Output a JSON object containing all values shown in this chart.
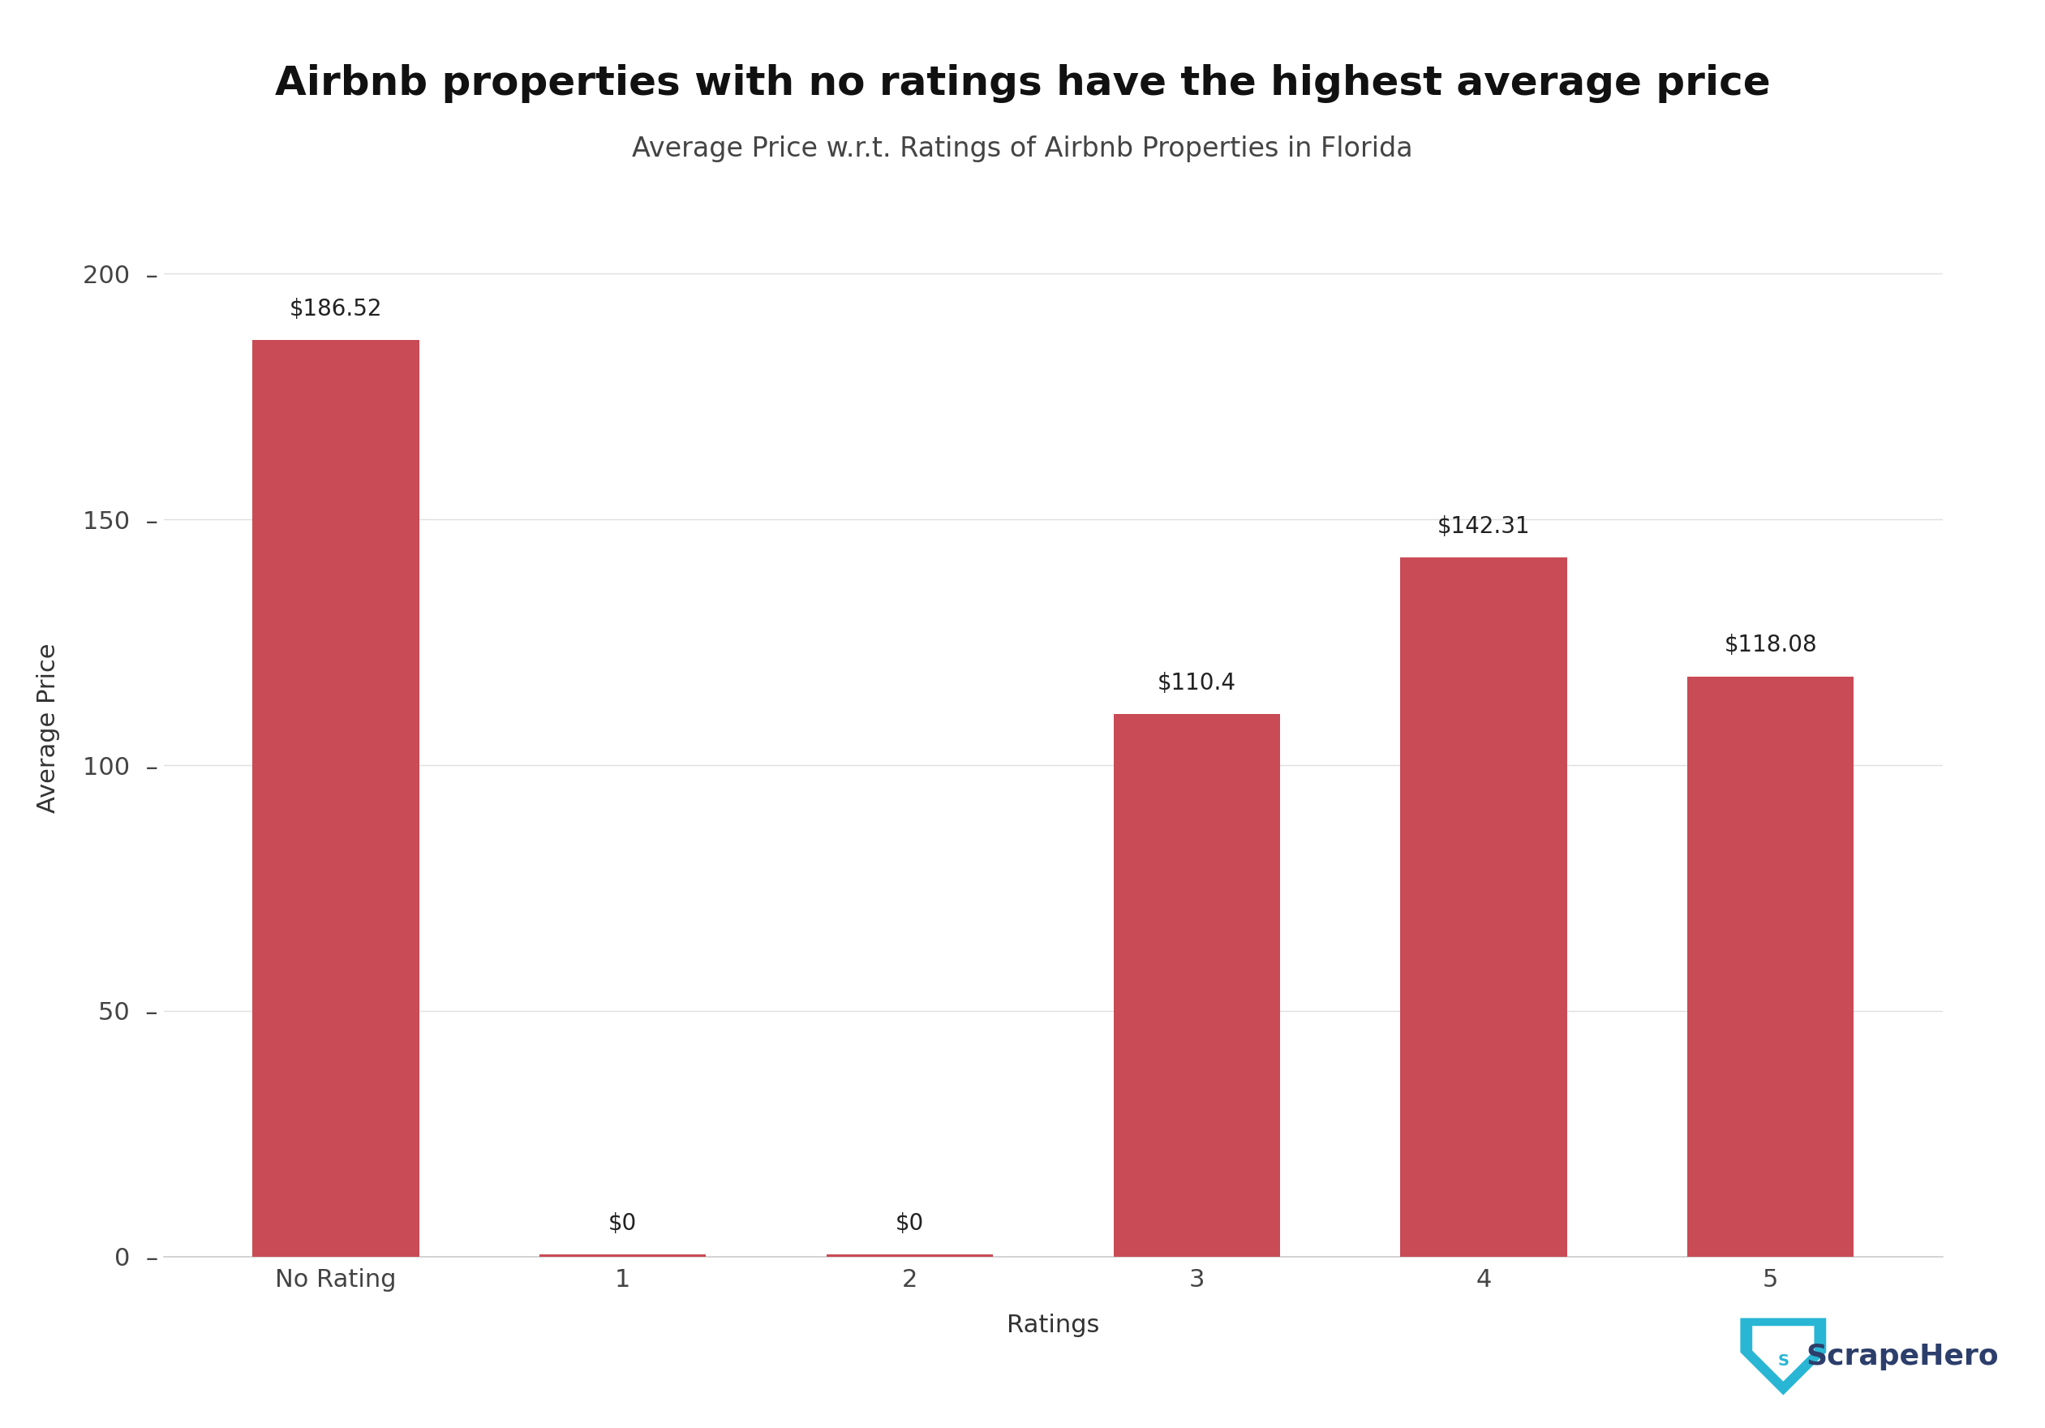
{
  "title": "Airbnb properties with no ratings have the highest average price",
  "subtitle": "Average Price w.r.t. Ratings of Airbnb Properties in Florida",
  "categories": [
    "No Rating",
    "1",
    "2",
    "3",
    "4",
    "5"
  ],
  "values": [
    186.52,
    0.5,
    0.5,
    110.4,
    142.31,
    118.08
  ],
  "true_values": [
    186.52,
    0,
    0,
    110.4,
    142.31,
    118.08
  ],
  "labels": [
    "$186.52",
    "$0",
    "$0",
    "$110.4",
    "$142.31",
    "$118.08"
  ],
  "bar_color": "#c94b56",
  "background_color": "#ffffff",
  "xlabel": "Ratings",
  "ylabel": "Average Price",
  "ylim": [
    0,
    215
  ],
  "yticks": [
    0,
    50,
    100,
    150,
    200
  ],
  "title_fontsize": 36,
  "subtitle_fontsize": 24,
  "label_fontsize": 20,
  "axis_label_fontsize": 22,
  "tick_fontsize": 22,
  "watermark_text": "ScrapeHero",
  "watermark_color": "#2c3e6b",
  "watermark_icon_color": "#29b6d4"
}
